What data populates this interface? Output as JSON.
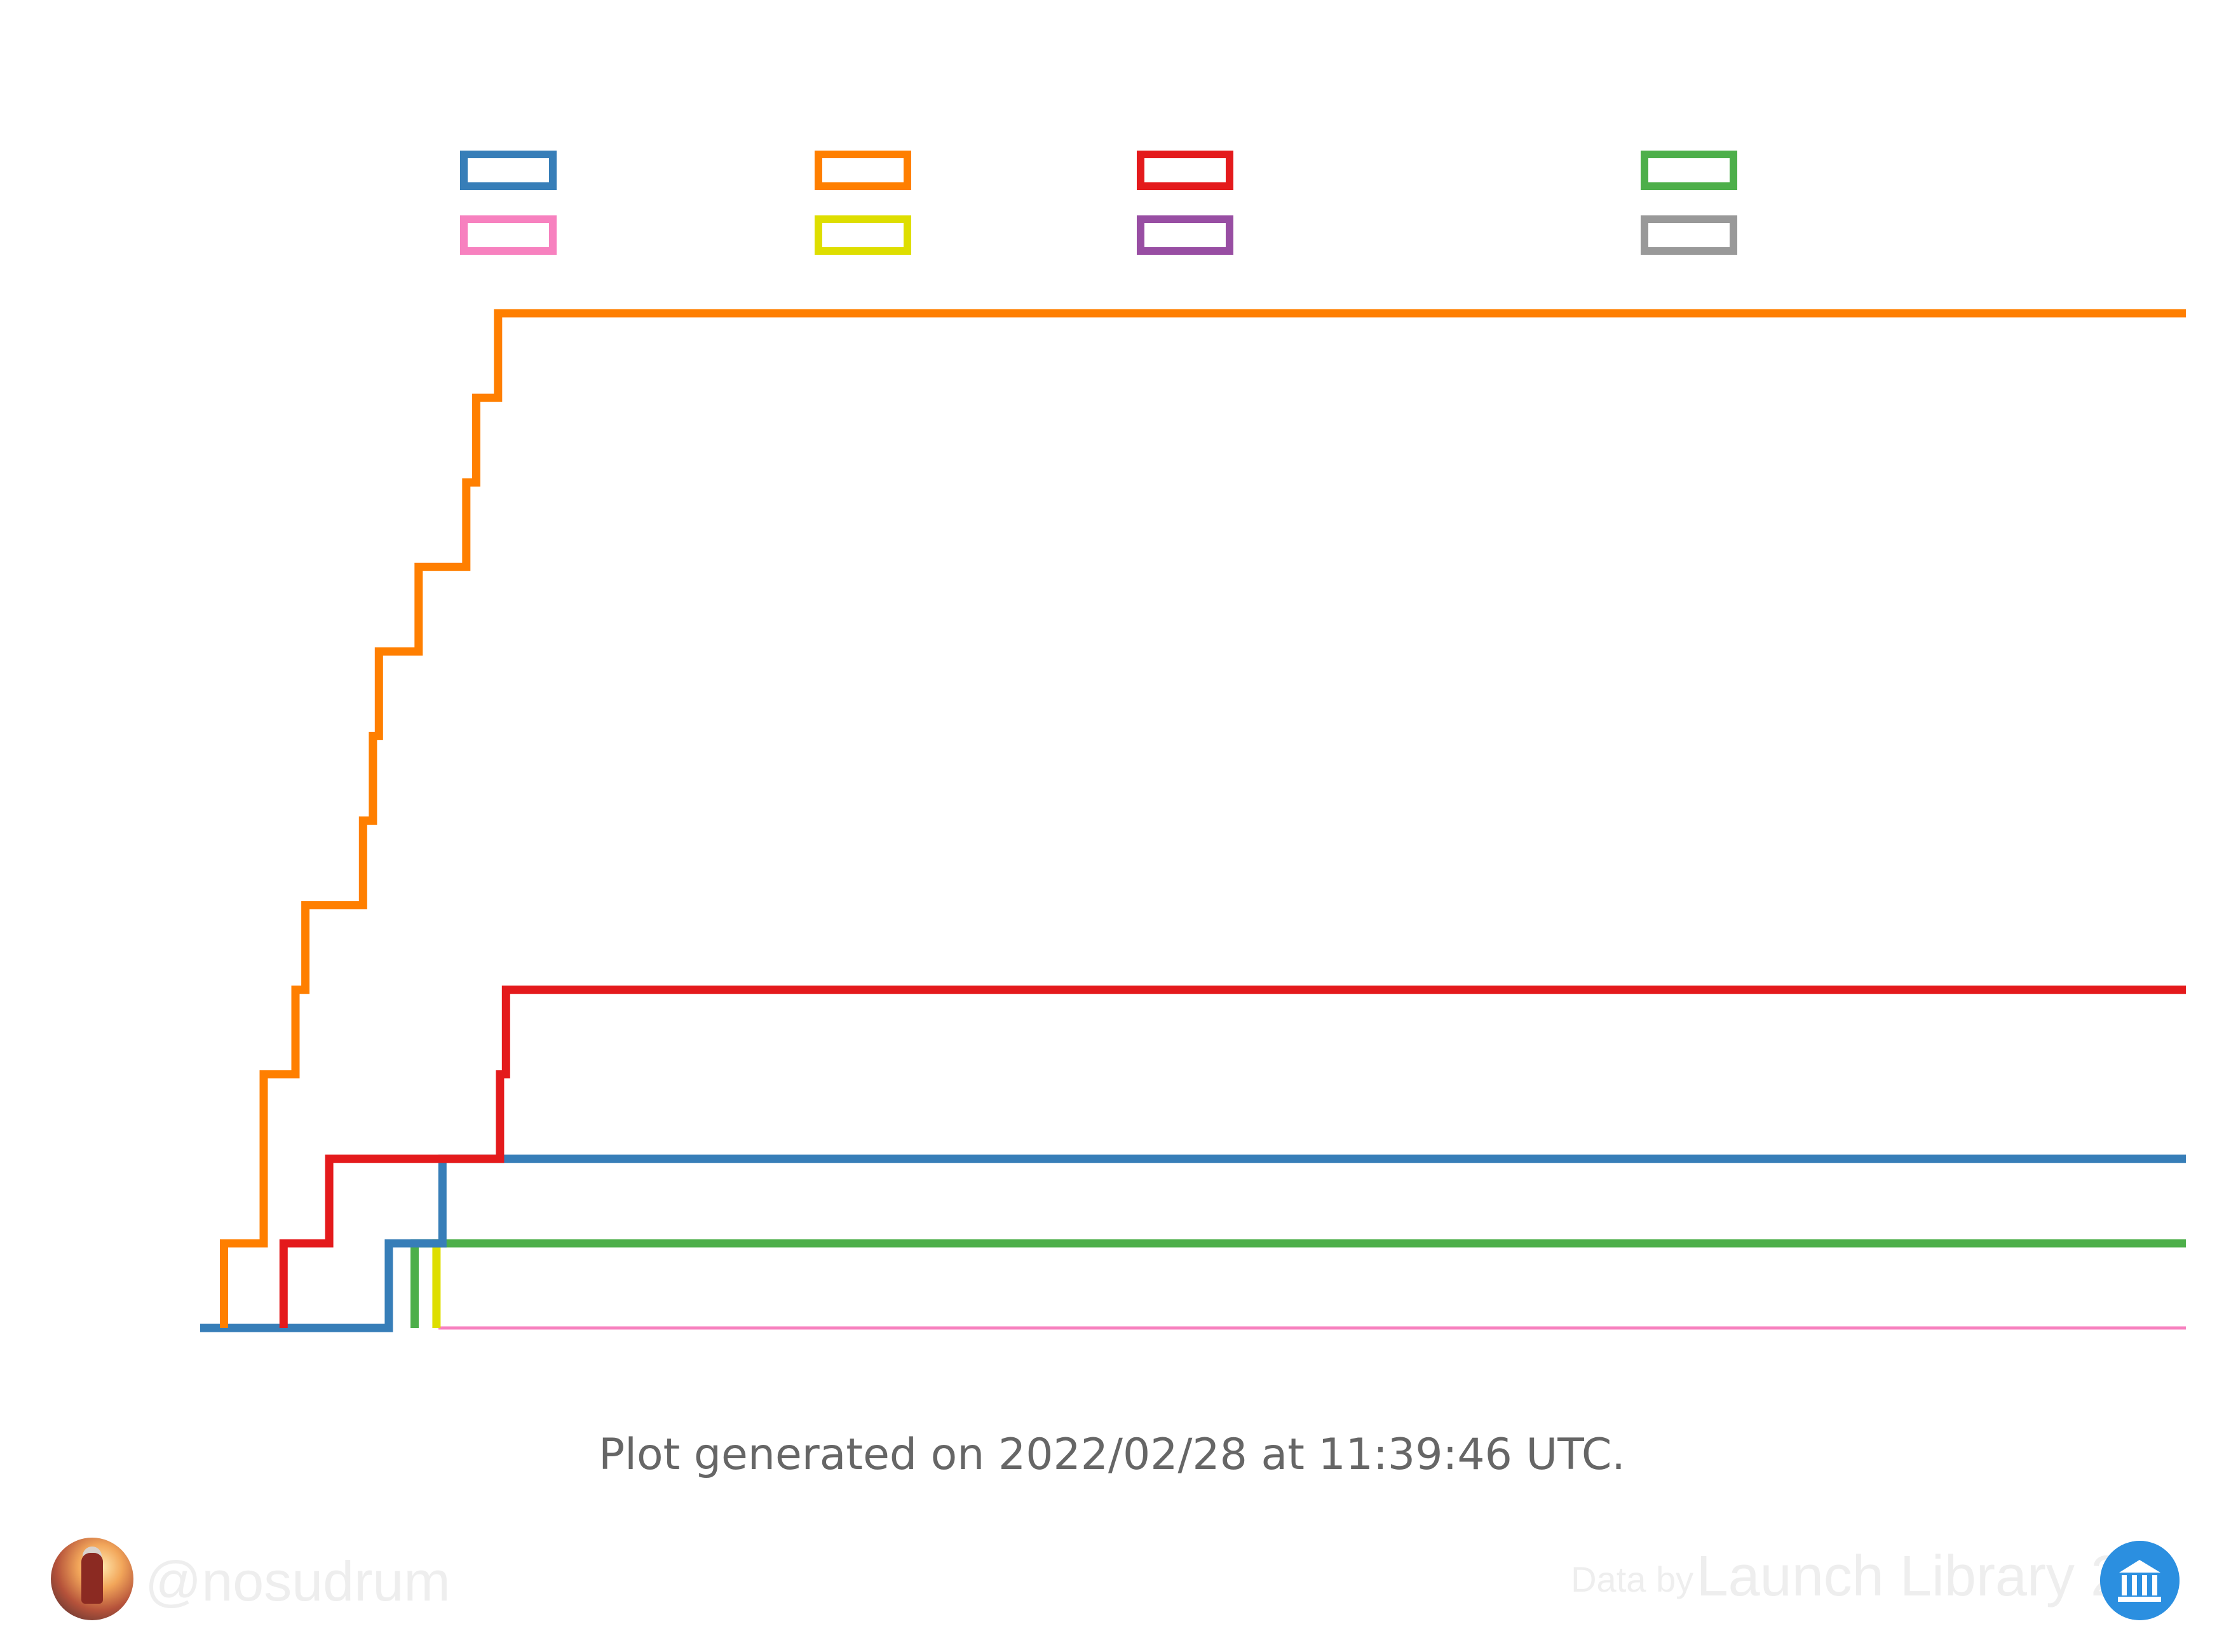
{
  "chart_data": {
    "type": "line",
    "step": true,
    "title": "",
    "xlabel": "",
    "ylabel": "",
    "grid": false,
    "legend_placement": "top",
    "legend_columns": 4,
    "x_range": [
      0,
      100
    ],
    "y_range": [
      0,
      12
    ],
    "series": [
      {
        "color": "#377eb8",
        "points": [
          [
            0,
            0
          ],
          [
            9.5,
            0
          ],
          [
            9.5,
            1
          ],
          [
            12.2,
            1
          ],
          [
            12.2,
            2
          ],
          [
            100,
            2
          ]
        ]
      },
      {
        "color": "#ff7f00",
        "points": [
          [
            1.2,
            0
          ],
          [
            1.2,
            1
          ],
          [
            3.2,
            1
          ],
          [
            3.2,
            3
          ],
          [
            4.8,
            3
          ],
          [
            4.8,
            4
          ],
          [
            5.3,
            4
          ],
          [
            5.3,
            5
          ],
          [
            8.2,
            5
          ],
          [
            8.2,
            6
          ],
          [
            8.7,
            6
          ],
          [
            8.7,
            7
          ],
          [
            9.0,
            7
          ],
          [
            9.0,
            8
          ],
          [
            11.0,
            8
          ],
          [
            11.0,
            9
          ],
          [
            13.4,
            9
          ],
          [
            13.4,
            10
          ],
          [
            13.9,
            10
          ],
          [
            13.9,
            11
          ],
          [
            15.0,
            11
          ],
          [
            15.0,
            12
          ],
          [
            100,
            12
          ]
        ]
      },
      {
        "color": "#e41a1c",
        "points": [
          [
            4.2,
            0
          ],
          [
            4.2,
            1
          ],
          [
            6.5,
            1
          ],
          [
            6.5,
            2
          ],
          [
            15.1,
            2
          ],
          [
            15.1,
            3
          ],
          [
            15.4,
            3
          ],
          [
            15.4,
            4
          ],
          [
            100,
            4
          ]
        ]
      },
      {
        "color": "#4daf4a",
        "points": [
          [
            10.8,
            0
          ],
          [
            10.8,
            1
          ],
          [
            100,
            1
          ]
        ]
      },
      {
        "color": "#f781bf",
        "points": [
          [
            12.0,
            0
          ],
          [
            100,
            0
          ]
        ]
      },
      {
        "color": "#dede00",
        "points": [
          [
            11.9,
            0
          ],
          [
            11.9,
            1
          ],
          [
            12.2,
            1
          ]
        ]
      },
      {
        "color": "#984ea3",
        "points": []
      },
      {
        "color": "#999999",
        "points": []
      }
    ]
  },
  "footer": {
    "generated": "Plot generated on 2022/02/28 at 11:39:46 UTC.",
    "handle": "@nosudrum",
    "credit_by": "Data by",
    "credit_source": "Launch Library 2"
  }
}
